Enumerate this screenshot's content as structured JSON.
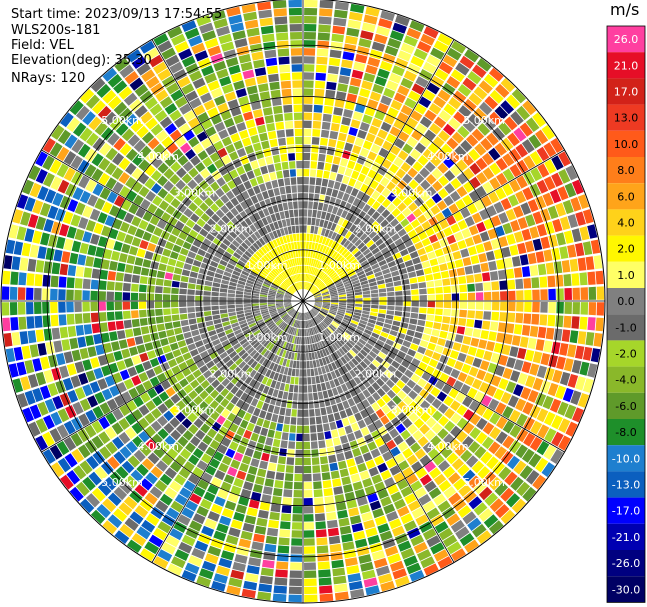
{
  "info": {
    "start_time": "Start time: 2023/09/13 17:54:55",
    "radar": "WLS200s-181",
    "field": "Field: VEL",
    "elevation": "Elevation(deg): 35.30",
    "nrays": "NRays: 120"
  },
  "colorbar": {
    "unit": "m/s",
    "ticks": [
      "26.0",
      "21.0",
      "17.0",
      "13.0",
      "10.0",
      "8.0",
      "6.0",
      "4.0",
      "2.0",
      "1.0",
      "0.0",
      "-1.0",
      "-2.0",
      "-4.0",
      "-6.0",
      "-8.0",
      "-10.0",
      "-13.0",
      "-17.0",
      "-21.0",
      "-26.0",
      "-30.0"
    ],
    "colors": [
      "#ff3fa0",
      "#e60e27",
      "#d22219",
      "#ee3a22",
      "#ff5a1a",
      "#ff7e1a",
      "#ffa41a",
      "#ffd21a",
      "#fff700",
      "#ffff66",
      "#808080",
      "#6b6b6b",
      "#a6d62a",
      "#8ab82a",
      "#5f9a2a",
      "#1e8f2a",
      "#1e7fcf",
      "#0b5fbf",
      "#0000ff",
      "#0000b2",
      "#000080",
      "#000064"
    ]
  },
  "chart_data": {
    "type": "polar_ppi",
    "title": "",
    "field": "VEL",
    "units": "m/s",
    "nrays": 120,
    "elevation_deg": 35.3,
    "range_labels": [
      "1.00km",
      "2.00km",
      "3.00km",
      "4.00km",
      "5.00km"
    ],
    "max_range_km": 5.9,
    "color_levels": [
      -30.0,
      -26.0,
      -21.0,
      -17.0,
      -13.0,
      -10.0,
      -8.0,
      -6.0,
      -4.0,
      -2.0,
      -1.0,
      0.0,
      1.0,
      2.0,
      4.0,
      6.0,
      8.0,
      10.0,
      13.0,
      17.0,
      21.0,
      26.0
    ]
  }
}
